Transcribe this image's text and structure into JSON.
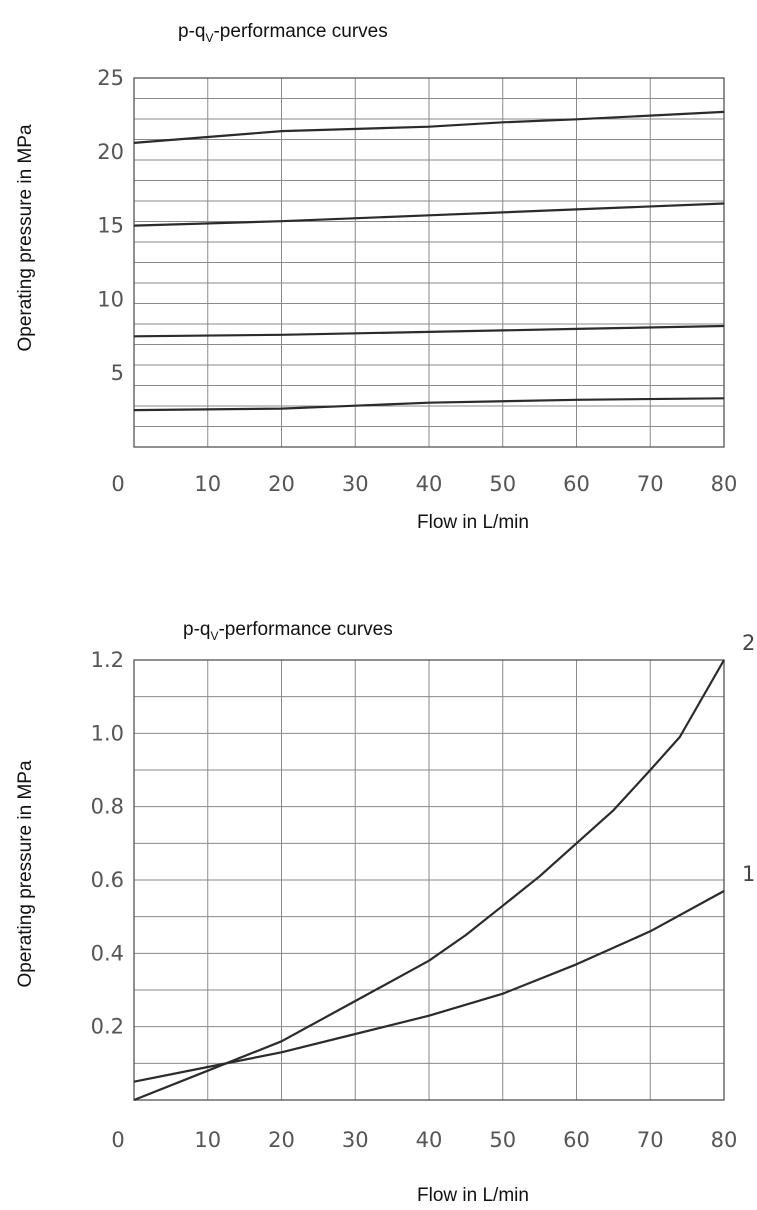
{
  "chart_data": [
    {
      "type": "line",
      "title": {
        "prefix": "p-q",
        "sub": "V",
        "suffix": "-performance curves"
      },
      "xlabel": "Flow  in L/min",
      "ylabel": "Operating pressure in MPa",
      "xlim": [
        0,
        80
      ],
      "ylim": [
        0,
        25
      ],
      "x_ticks": [
        "0",
        "10",
        "20",
        "30",
        "40",
        "50",
        "60",
        "70",
        "80"
      ],
      "y_ticks": [
        {
          "value": 5,
          "label": "5"
        },
        {
          "value": 10,
          "label": "10"
        },
        {
          "value": 15,
          "label": "15"
        },
        {
          "value": 20,
          "label": "20"
        },
        {
          "value": 25,
          "label": "25"
        }
      ],
      "grid": true,
      "series": [
        {
          "points": [
            [
              0,
              2.5
            ],
            [
              20,
              2.6
            ],
            [
              30,
              2.8
            ],
            [
              40,
              3.0
            ],
            [
              60,
              3.2
            ],
            [
              80,
              3.3
            ]
          ]
        },
        {
          "points": [
            [
              0,
              7.5
            ],
            [
              20,
              7.6
            ],
            [
              40,
              7.8
            ],
            [
              60,
              8.0
            ],
            [
              80,
              8.2
            ]
          ]
        },
        {
          "points": [
            [
              0,
              15.0
            ],
            [
              20,
              15.3
            ],
            [
              40,
              15.7
            ],
            [
              60,
              16.1
            ],
            [
              80,
              16.5
            ]
          ]
        },
        {
          "points": [
            [
              0,
              20.6
            ],
            [
              10,
              21.0
            ],
            [
              20,
              21.4
            ],
            [
              40,
              21.7
            ],
            [
              50,
              22.0
            ],
            [
              60,
              22.2
            ],
            [
              80,
              22.7
            ]
          ]
        }
      ]
    },
    {
      "type": "line",
      "title": {
        "prefix": "p-q",
        "sub": "V",
        "suffix": "-performance curves"
      },
      "xlabel": "Flow  in L/min",
      "ylabel": "Operating pressure in MPa",
      "xlim": [
        0,
        80
      ],
      "ylim": [
        0,
        1.2
      ],
      "x_ticks": [
        "0",
        "10",
        "20",
        "30",
        "40",
        "50",
        "60",
        "70",
        "80"
      ],
      "y_ticks": [
        {
          "value": 0.2,
          "label": "0.2"
        },
        {
          "value": 0.4,
          "label": "0.4"
        },
        {
          "value": 0.6,
          "label": "0.6"
        },
        {
          "value": 0.8,
          "label": "0.8"
        },
        {
          "value": 1.0,
          "label": "1.0"
        },
        {
          "value": 1.2,
          "label": "1.2"
        }
      ],
      "grid": true,
      "series": [
        {
          "name": "1",
          "points": [
            [
              0,
              0.05
            ],
            [
              10,
              0.09
            ],
            [
              20,
              0.13
            ],
            [
              30,
              0.18
            ],
            [
              40,
              0.23
            ],
            [
              50,
              0.29
            ],
            [
              60,
              0.37
            ],
            [
              70,
              0.46
            ],
            [
              80,
              0.57
            ]
          ]
        },
        {
          "name": "2",
          "points": [
            [
              0,
              0.0
            ],
            [
              10,
              0.08
            ],
            [
              20,
              0.16
            ],
            [
              30,
              0.27
            ],
            [
              40,
              0.38
            ],
            [
              45,
              0.45
            ],
            [
              50,
              0.53
            ],
            [
              55,
              0.61
            ],
            [
              60,
              0.7
            ],
            [
              65,
              0.79
            ],
            [
              70,
              0.9
            ],
            [
              74,
              0.99
            ],
            [
              80,
              1.2
            ]
          ]
        }
      ]
    }
  ]
}
